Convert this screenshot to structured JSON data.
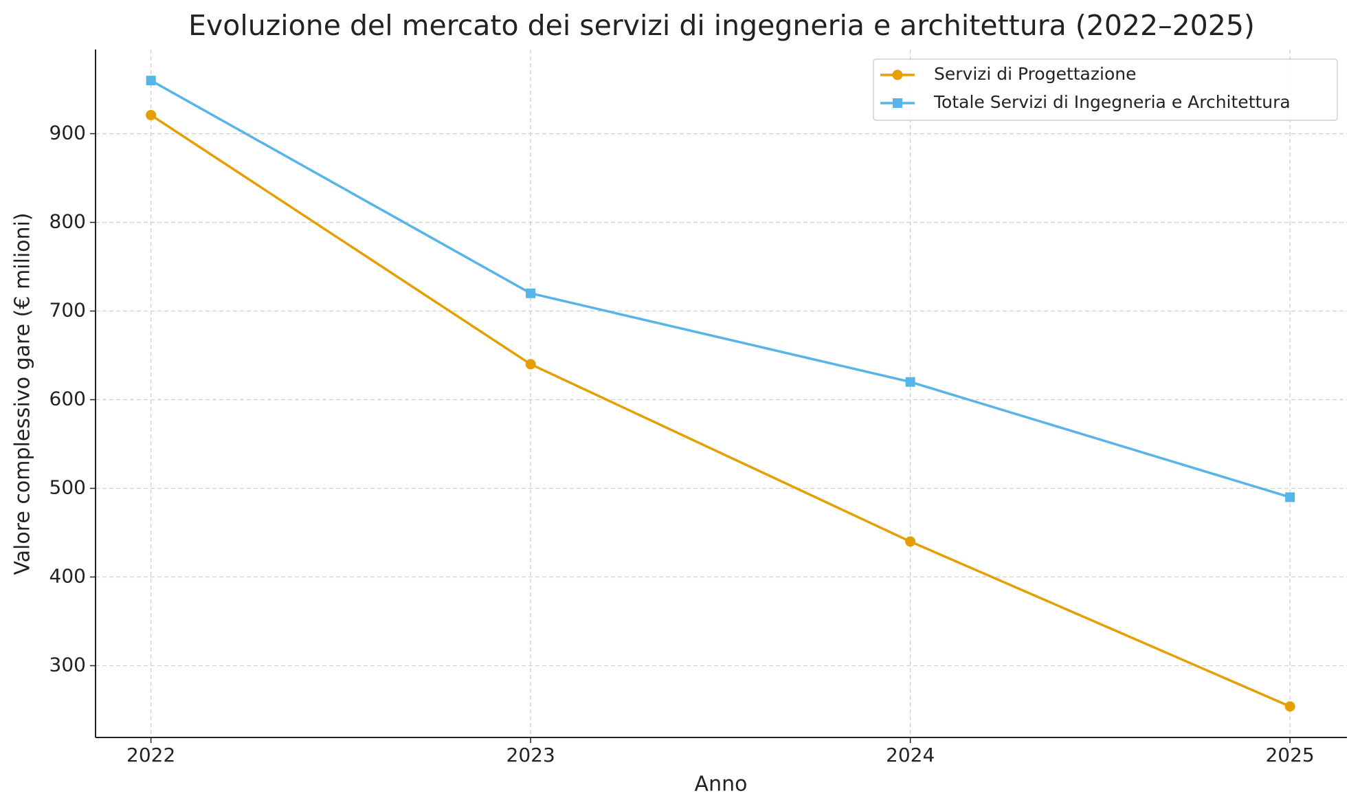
{
  "chart_data": {
    "type": "line",
    "title": "Evoluzione del mercato dei servizi di ingegneria e architettura (2022–2025)",
    "x_label": "Anno",
    "y_label": "Valore complessivo gare (€ milioni)",
    "x": [
      2022,
      2023,
      2024,
      2025
    ],
    "series": [
      {
        "name": "Servizi di Progettazione",
        "color": "#e69f00",
        "marker": "circle",
        "values": [
          921,
          640,
          440,
          254
        ]
      },
      {
        "name": "Totale Servizi di Ingegneria e Architettura",
        "color": "#56b4e9",
        "marker": "square",
        "values": [
          960,
          720,
          620,
          490
        ]
      }
    ],
    "xlim": [
      2021.854,
      2025.15
    ],
    "xticks": [
      2022,
      2023,
      2024,
      2025
    ],
    "ylim": [
      219,
      995
    ],
    "yticks": [
      300,
      400,
      500,
      600,
      700,
      800,
      900
    ],
    "grid": true,
    "legend": "upper right"
  }
}
